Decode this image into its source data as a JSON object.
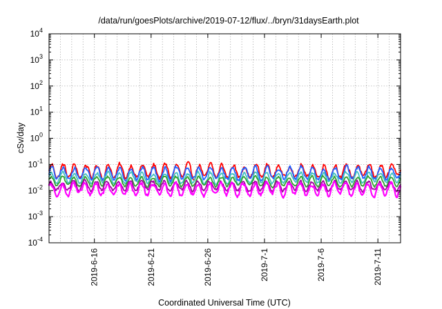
{
  "chart_data": {
    "type": "line",
    "title": "/data/run/goesPlots/archive/2019-07-12/flux/../bryn/31daysEarth.plot",
    "xlabel": "Coordinated Universal Time (UTC)",
    "ylabel": "cSv/day",
    "yscale": "log",
    "ylim": [
      0.0001,
      10000
    ],
    "xlim": [
      "2019-06-12",
      "2019-07-13"
    ],
    "grid": true,
    "legend": "none",
    "y_ticks": [
      {
        "base": "10",
        "exp": "-4",
        "value": 0.0001
      },
      {
        "base": "10",
        "exp": "-3",
        "value": 0.001
      },
      {
        "base": "10",
        "exp": "-2",
        "value": 0.01
      },
      {
        "base": "10",
        "exp": "-1",
        "value": 0.1
      },
      {
        "base": "10",
        "exp": "0",
        "value": 1
      },
      {
        "base": "10",
        "exp": "1",
        "value": 10
      },
      {
        "base": "10",
        "exp": "2",
        "value": 100
      },
      {
        "base": "10",
        "exp": "3",
        "value": 1000
      },
      {
        "base": "10",
        "exp": "4",
        "value": 10000
      }
    ],
    "x_ticks": [
      {
        "label": "2019-6-16",
        "date": "2019-06-16"
      },
      {
        "label": "2019-6-21",
        "date": "2019-06-21"
      },
      {
        "label": "2019-6-26",
        "date": "2019-06-26"
      },
      {
        "label": "2019-7-1",
        "date": "2019-07-01"
      },
      {
        "label": "2019-7-6",
        "date": "2019-07-06"
      },
      {
        "label": "2019-7-11",
        "date": "2019-07-11"
      }
    ],
    "series": [
      {
        "color": "#ff0000",
        "base": 0.055,
        "amp": 0.5,
        "noise": 0.35,
        "phase": 0.0
      },
      {
        "color": "#2060ff",
        "base": 0.045,
        "amp": 0.45,
        "noise": 0.3,
        "phase": 0.2
      },
      {
        "color": "#40c0c0",
        "base": 0.03,
        "amp": 0.4,
        "noise": 0.25,
        "phase": 0.4
      },
      {
        "color": "#30a030",
        "base": 0.022,
        "amp": 0.35,
        "noise": 0.2,
        "phase": 0.6
      },
      {
        "color": "#a000a0",
        "base": 0.015,
        "amp": 0.35,
        "noise": 0.25,
        "phase": 0.9
      },
      {
        "color": "#ff00ff",
        "base": 0.011,
        "amp": 0.45,
        "noise": 0.35,
        "phase": 1.1
      }
    ]
  }
}
